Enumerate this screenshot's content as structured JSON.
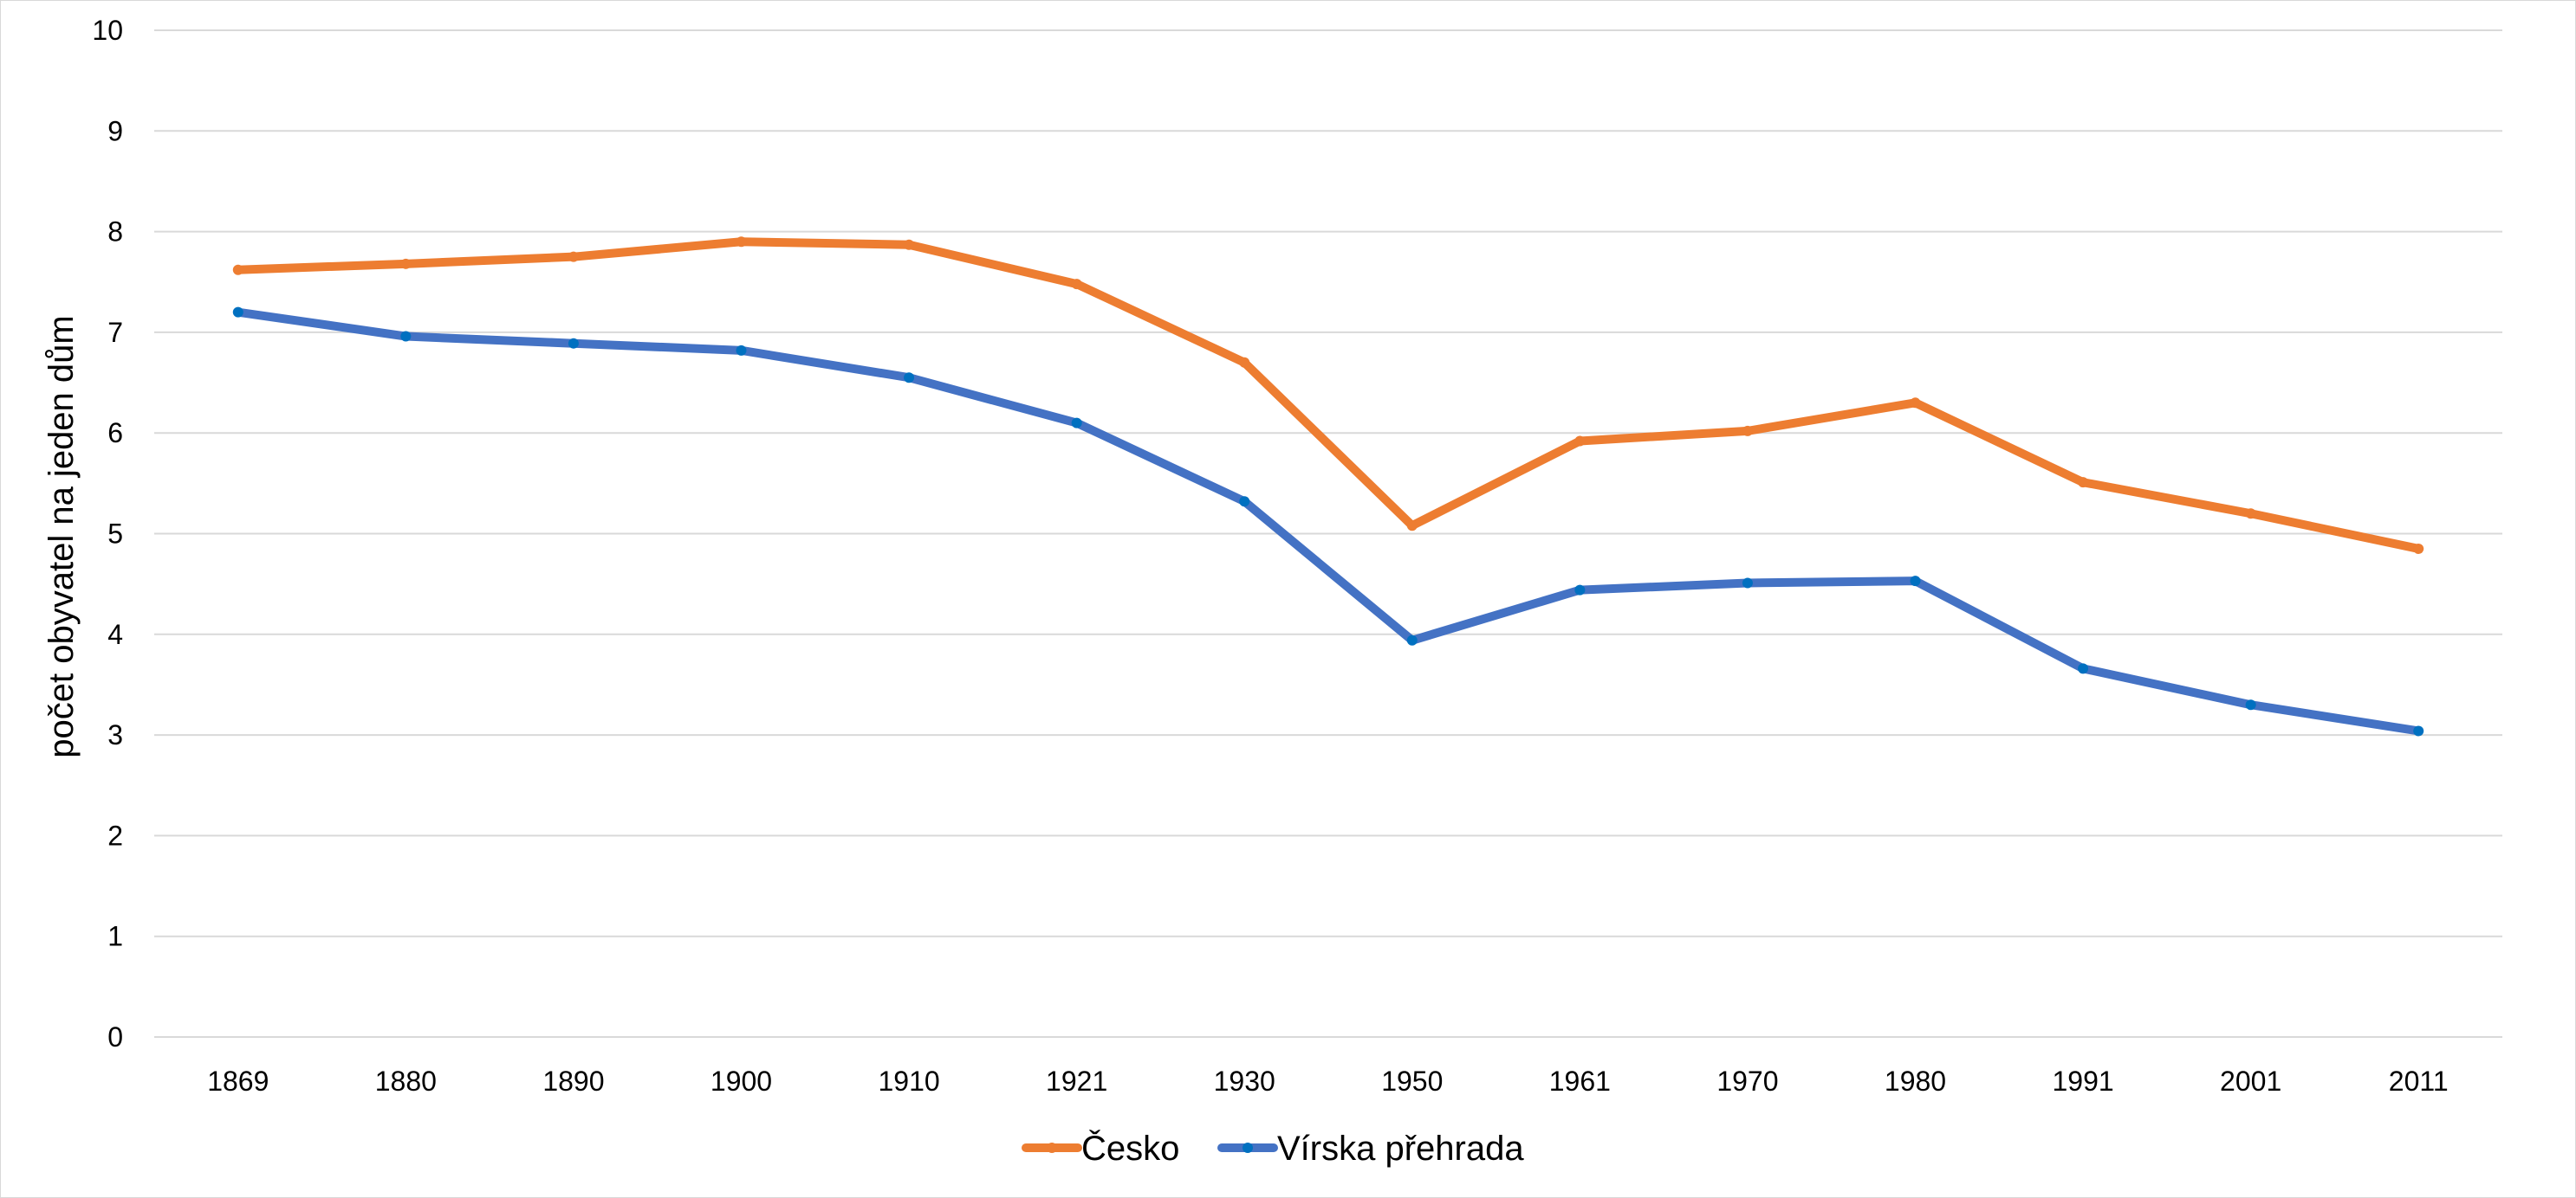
{
  "chart_data": {
    "type": "line",
    "title": "",
    "xlabel": "",
    "ylabel": "počet obyvatel na jeden dům",
    "categories": [
      "1869",
      "1880",
      "1890",
      "1900",
      "1910",
      "1921",
      "1930",
      "1950",
      "1961",
      "1970",
      "1980",
      "1991",
      "2001",
      "2011"
    ],
    "ylim": [
      0,
      10
    ],
    "yticks": [
      "0",
      "1",
      "2",
      "3",
      "4",
      "5",
      "6",
      "7",
      "8",
      "9",
      "10"
    ],
    "grid": true,
    "legend_position": "bottom",
    "series": [
      {
        "name": "Česko",
        "color": "#ed7d31",
        "values": [
          7.62,
          7.68,
          7.75,
          7.9,
          7.87,
          7.48,
          6.7,
          5.08,
          5.92,
          6.02,
          6.3,
          5.51,
          5.2,
          4.85
        ]
      },
      {
        "name": "Vírska přehrada",
        "color": "#4472c4",
        "marker_color": "#0070c0",
        "values": [
          7.2,
          6.96,
          6.89,
          6.82,
          6.55,
          6.1,
          5.32,
          3.94,
          4.44,
          4.51,
          4.53,
          3.66,
          3.3,
          3.04
        ]
      }
    ]
  }
}
